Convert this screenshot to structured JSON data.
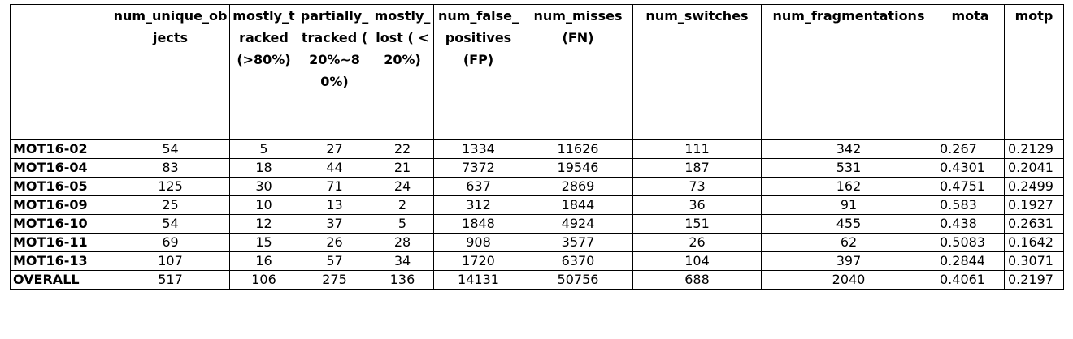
{
  "table": {
    "columns": [
      "",
      "num_unique_objects",
      "mostly_tracked (>80%)",
      "partially_tracked ( 20%~80%)",
      "mostly_lost ( <20%)",
      "num_false_positives (FP)",
      "num_misses (FN)",
      "num_switches",
      "num_fragmentations",
      "mota",
      "motp"
    ],
    "rows": [
      [
        "MOT16-02",
        "54",
        "5",
        "27",
        "22",
        "1334",
        "11626",
        "111",
        "342",
        "0.267",
        "0.2129"
      ],
      [
        "MOT16-04",
        "83",
        "18",
        "44",
        "21",
        "7372",
        "19546",
        "187",
        "531",
        "0.4301",
        "0.2041"
      ],
      [
        "MOT16-05",
        "125",
        "30",
        "71",
        "24",
        "637",
        "2869",
        "73",
        "162",
        "0.4751",
        "0.2499"
      ],
      [
        "MOT16-09",
        "25",
        "10",
        "13",
        "2",
        "312",
        "1844",
        "36",
        "91",
        "0.583",
        "0.1927"
      ],
      [
        "MOT16-10",
        "54",
        "12",
        "37",
        "5",
        "1848",
        "4924",
        "151",
        "455",
        "0.438",
        "0.2631"
      ],
      [
        "MOT16-11",
        "69",
        "15",
        "26",
        "28",
        "908",
        "3577",
        "26",
        "62",
        "0.5083",
        "0.1642"
      ],
      [
        "MOT16-13",
        "107",
        "16",
        "57",
        "34",
        "1720",
        "6370",
        "104",
        "397",
        "0.2844",
        "0.3071"
      ],
      [
        "OVERALL",
        "517",
        "106",
        "275",
        "136",
        "14131",
        "50756",
        "688",
        "2040",
        "0.4061",
        "0.2197"
      ]
    ]
  }
}
